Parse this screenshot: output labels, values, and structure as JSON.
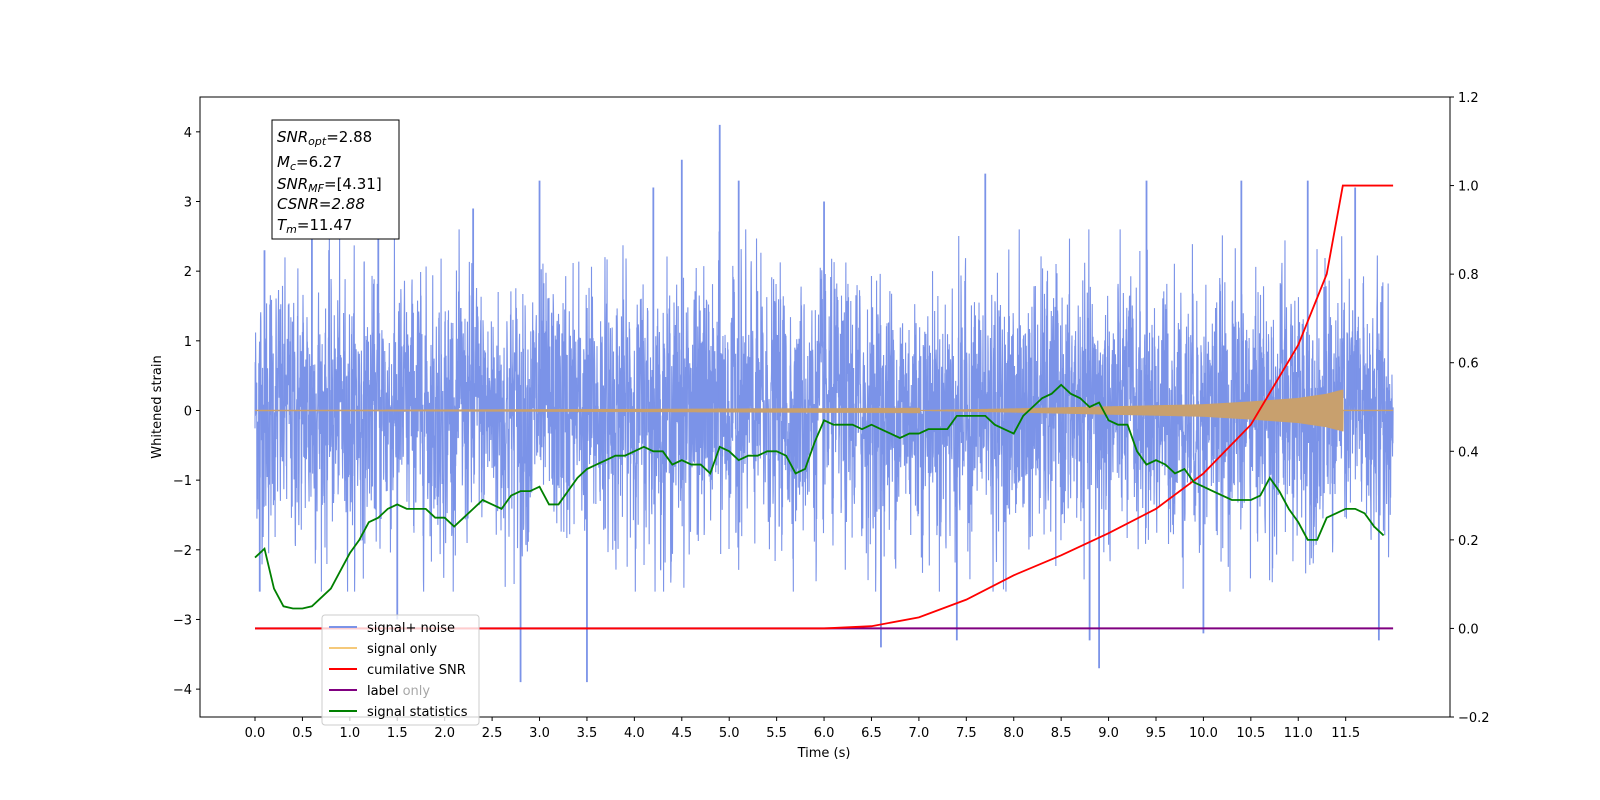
{
  "chart_data": {
    "type": "line",
    "title": "",
    "xlabel": "Time (s)",
    "ylabel": "Whitened strain",
    "xlim": [
      -0.58,
      12.6
    ],
    "ylim": [
      -4.4,
      4.5
    ],
    "y2lim": [
      -0.2,
      1.2
    ],
    "xticks": [
      "0.0",
      "0.5",
      "1.0",
      "1.5",
      "2.0",
      "2.5",
      "3.0",
      "3.5",
      "4.0",
      "4.5",
      "5.0",
      "5.5",
      "6.0",
      "6.5",
      "7.0",
      "7.5",
      "8.0",
      "8.5",
      "9.0",
      "9.5",
      "10.0",
      "10.5",
      "11.0",
      "11.5"
    ],
    "yticks_left": [
      "4",
      "3",
      "2",
      "1",
      "0",
      "−1",
      "−2",
      "−3",
      "−4"
    ],
    "yticks_right": [
      "1.2",
      "1.0",
      "0.8",
      "0.6",
      "0.4",
      "0.2",
      "0.0",
      "−0.2"
    ],
    "grid": false,
    "legend_position": "lower-left",
    "legend": [
      {
        "name": "signal+ noise",
        "color": "#7b93e8"
      },
      {
        "name": "signal only",
        "color": "#f5c97a"
      },
      {
        "name": "cumilative SNR",
        "color": "#ff0000"
      },
      {
        "name": "label",
        "color": "#800080"
      },
      {
        "name": "signal statistics",
        "color": "#008000"
      }
    ],
    "hidden_legend_text": "label only",
    "annotation": {
      "snr_opt_base": "SNR",
      "snr_opt_sub": "opt",
      "snr_opt_val": "=2.88",
      "mc_base": "M",
      "mc_sub": "c",
      "mc_val": "=6.27",
      "snr_mf_base": "SNR",
      "snr_mf_sub": "MF",
      "snr_mf_val": "=[4.31]",
      "csnr": "CSNR=2.88",
      "tm_base": "T",
      "tm_sub": "m",
      "tm_val": "=11.47"
    },
    "series": [
      {
        "name": "signal+ noise",
        "axis": "left",
        "color": "#7b93e8",
        "x_range": [
          0.0,
          12.0
        ],
        "envelope_note": "dense noise, mostly within ±2.5 with spikes",
        "spikes": [
          {
            "x": 0.05,
            "y": -2.6
          },
          {
            "x": 0.1,
            "y": 2.3
          },
          {
            "x": 0.6,
            "y": 2.6
          },
          {
            "x": 1.3,
            "y": 3.0
          },
          {
            "x": 1.5,
            "y": -3.0
          },
          {
            "x": 2.3,
            "y": 2.9
          },
          {
            "x": 2.8,
            "y": -3.9
          },
          {
            "x": 3.0,
            "y": 3.3
          },
          {
            "x": 3.5,
            "y": -3.9
          },
          {
            "x": 4.2,
            "y": 3.2
          },
          {
            "x": 4.5,
            "y": 3.6
          },
          {
            "x": 4.9,
            "y": 4.1
          },
          {
            "x": 5.1,
            "y": 3.3
          },
          {
            "x": 6.0,
            "y": 3.0
          },
          {
            "x": 6.6,
            "y": -3.4
          },
          {
            "x": 7.4,
            "y": -3.3
          },
          {
            "x": 7.7,
            "y": 3.4
          },
          {
            "x": 8.8,
            "y": -3.3
          },
          {
            "x": 8.9,
            "y": -3.7
          },
          {
            "x": 9.4,
            "y": 3.3
          },
          {
            "x": 10.0,
            "y": -3.2
          },
          {
            "x": 10.4,
            "y": 3.3
          },
          {
            "x": 11.1,
            "y": 3.3
          },
          {
            "x": 11.6,
            "y": 3.2
          },
          {
            "x": 11.85,
            "y": -3.3
          }
        ]
      },
      {
        "name": "signal only",
        "axis": "left",
        "color": "#c8a06e",
        "x": [
          0.0,
          7.0,
          8.0,
          9.0,
          10.0,
          10.5,
          11.0,
          11.3,
          11.47
        ],
        "amplitude": [
          0.0,
          0.005,
          0.03,
          0.06,
          0.09,
          0.13,
          0.18,
          0.24,
          0.3
        ],
        "after_merger": 0.0,
        "x_end": 12.0
      },
      {
        "name": "cumilative SNR",
        "axis": "right",
        "color": "#ff0000",
        "x": [
          0.0,
          5.5,
          6.0,
          6.5,
          7.0,
          7.5,
          8.0,
          8.5,
          9.0,
          9.5,
          10.0,
          10.5,
          11.0,
          11.3,
          11.47,
          12.0
        ],
        "values": [
          0.0,
          0.0,
          0.0,
          0.005,
          0.025,
          0.065,
          0.12,
          0.165,
          0.215,
          0.27,
          0.35,
          0.46,
          0.64,
          0.8,
          1.0,
          1.0
        ]
      },
      {
        "name": "label",
        "axis": "right",
        "color": "#800080",
        "x": [
          0.0,
          12.0
        ],
        "values": [
          0.0,
          0.0
        ]
      },
      {
        "name": "signal statistics",
        "axis": "right",
        "color": "#008000",
        "x": [
          0.0,
          0.1,
          0.2,
          0.3,
          0.4,
          0.5,
          0.6,
          0.7,
          0.8,
          0.9,
          1.0,
          1.1,
          1.2,
          1.3,
          1.4,
          1.5,
          1.6,
          1.7,
          1.8,
          1.9,
          2.0,
          2.1,
          2.2,
          2.3,
          2.4,
          2.5,
          2.6,
          2.7,
          2.8,
          2.9,
          3.0,
          3.1,
          3.2,
          3.3,
          3.4,
          3.5,
          3.6,
          3.7,
          3.8,
          3.9,
          4.0,
          4.1,
          4.2,
          4.3,
          4.4,
          4.5,
          4.6,
          4.7,
          4.8,
          4.9,
          5.0,
          5.1,
          5.2,
          5.3,
          5.4,
          5.5,
          5.6,
          5.7,
          5.8,
          5.9,
          6.0,
          6.1,
          6.2,
          6.3,
          6.4,
          6.5,
          6.6,
          6.7,
          6.8,
          6.9,
          7.0,
          7.1,
          7.2,
          7.3,
          7.4,
          7.5,
          7.6,
          7.7,
          7.8,
          7.9,
          8.0,
          8.1,
          8.2,
          8.3,
          8.4,
          8.5,
          8.6,
          8.7,
          8.8,
          8.9,
          9.0,
          9.1,
          9.2,
          9.3,
          9.4,
          9.5,
          9.6,
          9.7,
          9.8,
          9.9,
          10.0,
          10.1,
          10.2,
          10.3,
          10.4,
          10.5,
          10.6,
          10.7,
          10.8,
          10.9,
          11.0,
          11.1,
          11.2,
          11.3,
          11.4,
          11.5,
          11.6,
          11.7,
          11.8,
          11.9
        ],
        "values": [
          0.16,
          0.18,
          0.09,
          0.05,
          0.045,
          0.045,
          0.05,
          0.07,
          0.09,
          0.13,
          0.17,
          0.2,
          0.24,
          0.25,
          0.27,
          0.28,
          0.27,
          0.27,
          0.27,
          0.25,
          0.25,
          0.23,
          0.25,
          0.27,
          0.29,
          0.28,
          0.27,
          0.3,
          0.31,
          0.31,
          0.32,
          0.28,
          0.28,
          0.31,
          0.34,
          0.36,
          0.37,
          0.38,
          0.39,
          0.39,
          0.4,
          0.41,
          0.4,
          0.4,
          0.37,
          0.38,
          0.37,
          0.37,
          0.35,
          0.41,
          0.4,
          0.38,
          0.39,
          0.39,
          0.4,
          0.4,
          0.39,
          0.35,
          0.36,
          0.42,
          0.47,
          0.46,
          0.46,
          0.46,
          0.45,
          0.46,
          0.45,
          0.44,
          0.43,
          0.44,
          0.44,
          0.45,
          0.45,
          0.45,
          0.48,
          0.48,
          0.48,
          0.48,
          0.46,
          0.45,
          0.44,
          0.48,
          0.5,
          0.52,
          0.53,
          0.55,
          0.53,
          0.52,
          0.5,
          0.51,
          0.47,
          0.46,
          0.46,
          0.4,
          0.37,
          0.38,
          0.37,
          0.35,
          0.36,
          0.33,
          0.32,
          0.31,
          0.3,
          0.29,
          0.29,
          0.29,
          0.3,
          0.34,
          0.31,
          0.27,
          0.24,
          0.2,
          0.2,
          0.25,
          0.26,
          0.27,
          0.27,
          0.26,
          0.23,
          0.21
        ]
      }
    ]
  }
}
